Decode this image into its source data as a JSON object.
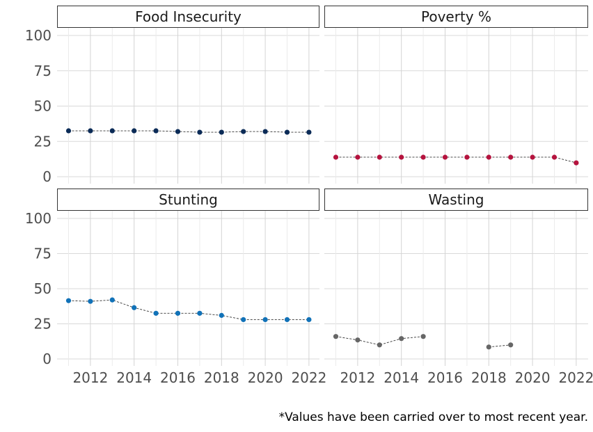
{
  "chart_data": {
    "type": "line",
    "layout": "facet-grid-2x2",
    "x_ticks": [
      2012,
      2014,
      2016,
      2018,
      2020,
      2022
    ],
    "y_ticks": [
      0,
      25,
      50,
      75,
      100
    ],
    "xlim": [
      2010.5,
      2022.5
    ],
    "ylim": [
      0,
      100
    ],
    "grid": true,
    "legend": "none",
    "panels": [
      {
        "title": "Food Insecurity",
        "color": "#0b2b57",
        "x": [
          2011,
          2012,
          2013,
          2014,
          2015,
          2016,
          2017,
          2018,
          2019,
          2020,
          2021,
          2022
        ],
        "y": [
          32.5,
          32.5,
          32.5,
          32.5,
          32.5,
          32,
          31.5,
          31.5,
          32,
          32,
          31.5,
          31.5
        ]
      },
      {
        "title": "Poverty %",
        "color": "#b5133e",
        "x": [
          2011,
          2012,
          2013,
          2014,
          2015,
          2016,
          2017,
          2018,
          2019,
          2020,
          2021,
          2022
        ],
        "y": [
          13.8,
          13.8,
          13.8,
          13.8,
          13.8,
          13.8,
          13.8,
          13.8,
          13.8,
          13.8,
          13.8,
          9.8
        ]
      },
      {
        "title": "Stunting",
        "color": "#1172b8",
        "x": [
          2011,
          2012,
          2013,
          2014,
          2015,
          2016,
          2017,
          2018,
          2019,
          2020,
          2021,
          2022
        ],
        "y": [
          41.5,
          41,
          42,
          36.5,
          32.5,
          32.5,
          32.5,
          31,
          28,
          28,
          28,
          28
        ]
      },
      {
        "title": "Wasting",
        "color": "#666666",
        "x": [
          2011,
          2012,
          2013,
          2014,
          2015,
          2018,
          2019
        ],
        "y": [
          16,
          13.5,
          10,
          14.5,
          16,
          8.5,
          10
        ],
        "segments": [
          [
            0,
            4
          ],
          [
            5,
            6
          ]
        ]
      }
    ],
    "caption": "*Values have been carried over to most recent year."
  }
}
